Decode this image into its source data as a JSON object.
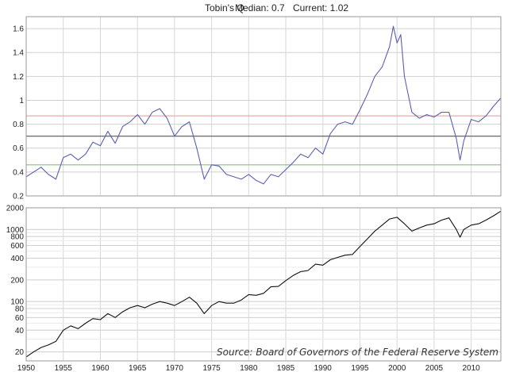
{
  "chart_data": [
    {
      "type": "line",
      "title": "Tobin's Q",
      "median_text": "Median: 0.7",
      "current_text": "Current: 1.02",
      "xlim": [
        1950,
        2014
      ],
      "ylim": [
        0.2,
        1.7
      ],
      "y_ticks": [
        0.2,
        0.4,
        0.6,
        0.8,
        1,
        1.2,
        1.4,
        1.6
      ],
      "x_ticks": [
        1950,
        1955,
        1960,
        1965,
        1970,
        1975,
        1980,
        1985,
        1990,
        1995,
        2000,
        2005,
        2010
      ],
      "grid": true,
      "reference_lines": [
        {
          "value": 0.87,
          "color": "#e8a0a0"
        },
        {
          "value": 0.7,
          "color": "#555555"
        },
        {
          "value": 0.46,
          "color": "#7cc77c"
        }
      ],
      "series": [
        {
          "color": "#5b5fb0",
          "x": [
            1950,
            1951,
            1952,
            1953,
            1954,
            1955,
            1956,
            1957,
            1958,
            1959,
            1960,
            1961,
            1962,
            1963,
            1964,
            1965,
            1966,
            1967,
            1968,
            1969,
            1970,
            1971,
            1972,
            1973,
            1974,
            1975,
            1976,
            1977,
            1978,
            1979,
            1980,
            1981,
            1982,
            1983,
            1984,
            1985,
            1986,
            1987,
            1988,
            1989,
            1990,
            1991,
            1992,
            1993,
            1994,
            1995,
            1996,
            1997,
            1998,
            1999,
            1999.5,
            2000,
            2000.5,
            2001,
            2002,
            2003,
            2004,
            2005,
            2006,
            2007,
            2008,
            2008.5,
            2009,
            2010,
            2011,
            2012,
            2013,
            2014
          ],
          "y": [
            0.36,
            0.4,
            0.44,
            0.38,
            0.34,
            0.52,
            0.55,
            0.5,
            0.55,
            0.65,
            0.62,
            0.74,
            0.64,
            0.78,
            0.82,
            0.88,
            0.8,
            0.9,
            0.93,
            0.85,
            0.7,
            0.78,
            0.82,
            0.6,
            0.34,
            0.46,
            0.45,
            0.38,
            0.36,
            0.34,
            0.38,
            0.33,
            0.3,
            0.38,
            0.36,
            0.42,
            0.48,
            0.55,
            0.52,
            0.6,
            0.55,
            0.72,
            0.8,
            0.82,
            0.8,
            0.92,
            1.05,
            1.2,
            1.28,
            1.45,
            1.62,
            1.48,
            1.55,
            1.2,
            0.9,
            0.85,
            0.88,
            0.86,
            0.9,
            0.9,
            0.68,
            0.5,
            0.66,
            0.84,
            0.82,
            0.87,
            0.95,
            1.02
          ]
        }
      ]
    },
    {
      "type": "line",
      "scale": "log",
      "xlim": [
        1950,
        2014
      ],
      "ylim": [
        15,
        2000
      ],
      "y_ticks": [
        20,
        40,
        60,
        80,
        100,
        200,
        400,
        600,
        800,
        1000,
        2000
      ],
      "x_ticks": [
        1950,
        1955,
        1960,
        1965,
        1970,
        1975,
        1980,
        1985,
        1990,
        1995,
        2000,
        2005,
        2010
      ],
      "grid": true,
      "annotation": "Source: Board of Governors of the Federal Reserve System",
      "series": [
        {
          "color": "#111111",
          "x": [
            1950,
            1951,
            1952,
            1953,
            1954,
            1955,
            1956,
            1957,
            1958,
            1959,
            1960,
            1961,
            1962,
            1963,
            1964,
            1965,
            1966,
            1967,
            1968,
            1969,
            1970,
            1971,
            1972,
            1973,
            1974,
            1975,
            1976,
            1977,
            1978,
            1979,
            1980,
            1981,
            1982,
            1983,
            1984,
            1985,
            1986,
            1987,
            1988,
            1989,
            1990,
            1991,
            1992,
            1993,
            1994,
            1995,
            1996,
            1997,
            1998,
            1999,
            2000,
            2001,
            2002,
            2003,
            2004,
            2005,
            2006,
            2007,
            2008,
            2008.5,
            2009,
            2010,
            2011,
            2012,
            2013,
            2014
          ],
          "y": [
            17,
            20,
            23,
            25,
            28,
            40,
            46,
            42,
            50,
            58,
            56,
            68,
            60,
            72,
            82,
            88,
            82,
            92,
            100,
            95,
            88,
            100,
            115,
            95,
            68,
            88,
            100,
            95,
            95,
            105,
            125,
            122,
            130,
            160,
            162,
            195,
            230,
            260,
            270,
            330,
            320,
            380,
            410,
            440,
            450,
            580,
            740,
            950,
            1150,
            1400,
            1480,
            1200,
            950,
            1050,
            1150,
            1200,
            1350,
            1450,
            1000,
            780,
            1000,
            1150,
            1200,
            1350,
            1550,
            1800
          ]
        }
      ]
    }
  ]
}
